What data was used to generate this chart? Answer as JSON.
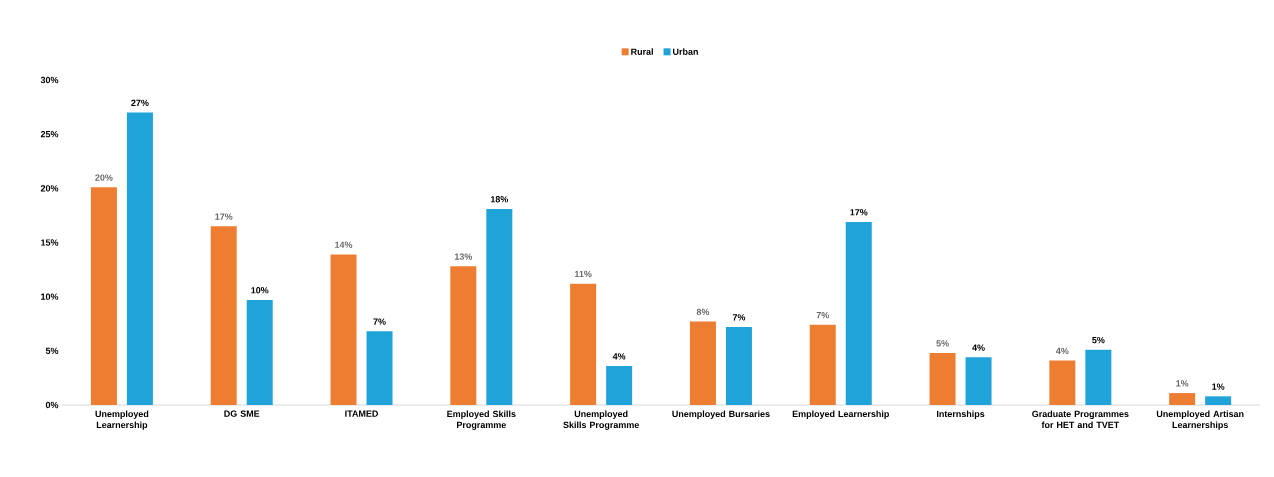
{
  "chart_data": {
    "type": "bar",
    "categories": [
      "Unemployed Learnership",
      "DG SME",
      "ITAMED",
      "Employed Skills Programme",
      "Unemployed Skills Programme",
      "Unemployed Bursaries",
      "Employed Learnership",
      "Internships",
      "Graduate Programmes for HET and TVET",
      "Unemployed Artisan Learnerships"
    ],
    "series": [
      {
        "name": "Rural",
        "color": "#ed7d31",
        "values": [
          20.1,
          16.5,
          13.9,
          12.8,
          11.2,
          7.7,
          7.4,
          4.8,
          4.1,
          1.1
        ],
        "value_labels": [
          "20%",
          "17%",
          "14%",
          "13%",
          "11%",
          "8%",
          "7%",
          "5%",
          "4%",
          "1%"
        ]
      },
      {
        "name": "Urban",
        "color": "#1fa3d8",
        "values": [
          27.0,
          9.7,
          6.8,
          18.1,
          3.6,
          7.2,
          16.9,
          4.4,
          5.1,
          0.8
        ],
        "value_labels": [
          "27%",
          "10%",
          "7%",
          "18%",
          "4%",
          "7%",
          "17%",
          "4%",
          "5%",
          "1%"
        ]
      }
    ],
    "ylim": [
      0,
      30
    ],
    "yticks": [
      {
        "value": 0,
        "label": "0%"
      },
      {
        "value": 5,
        "label": "5%"
      },
      {
        "value": 10,
        "label": "10%"
      },
      {
        "value": 15,
        "label": "15%"
      },
      {
        "value": 20,
        "label": "20%"
      },
      {
        "value": 25,
        "label": "25%"
      },
      {
        "value": 30,
        "label": "30%"
      }
    ],
    "legend": "top",
    "grid": false
  }
}
